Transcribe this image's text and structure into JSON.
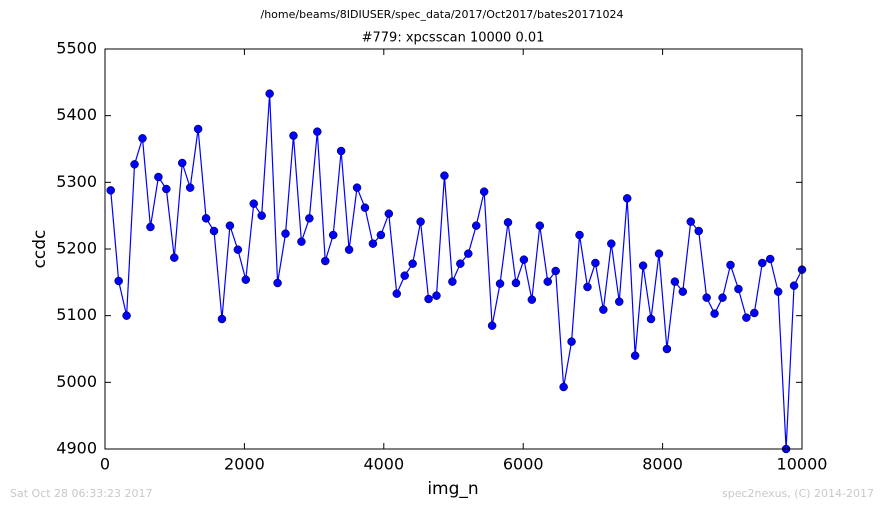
{
  "chart_data": {
    "type": "line",
    "suptitle": "/home/beams/8IDIUSER/spec_data/2017/Oct2017/bates20171024",
    "title": "#779: xpcsscan 10000 0.01",
    "xlabel": "img_n",
    "ylabel": "ccdc",
    "footer_left": "Sat Oct 28 06:33:23 2017",
    "footer_right": "spec2nexus, (C) 2014-2017",
    "color": "#0000ff",
    "x": [
      82,
      196,
      310,
      424,
      538,
      652,
      766,
      880,
      994,
      1108,
      1222,
      1336,
      1450,
      1564,
      1678,
      1792,
      1906,
      2020,
      2134,
      2248,
      2362,
      2476,
      2590,
      2704,
      2818,
      2932,
      3046,
      3160,
      3274,
      3388,
      3502,
      3616,
      3730,
      3844,
      3958,
      4072,
      4186,
      4300,
      4414,
      4528,
      4642,
      4756,
      4870,
      4984,
      5098,
      5212,
      5326,
      5440,
      5554,
      5668,
      5782,
      5896,
      6010,
      6124,
      6238,
      6352,
      6466,
      6580,
      6694,
      6808,
      6922,
      7036,
      7150,
      7264,
      7378,
      7492,
      7606,
      7720,
      7834,
      7948,
      8062,
      8176,
      8290,
      8404,
      8518,
      8632,
      8746,
      8860,
      8974,
      9088,
      9202,
      9316,
      9430,
      9544,
      9658,
      9772,
      9886,
      10000
    ],
    "values": [
      5288,
      5152,
      5100,
      5327,
      5366,
      5233,
      5308,
      5290,
      5187,
      5329,
      5292,
      5380,
      5246,
      5227,
      5095,
      5235,
      5199,
      5154,
      5268,
      5250,
      5433,
      5149,
      5223,
      5370,
      5211,
      5246,
      5376,
      5182,
      5221,
      5347,
      5199,
      5292,
      5262,
      5208,
      5221,
      5253,
      5133,
      5160,
      5178,
      5241,
      5125,
      5130,
      5310,
      5151,
      5178,
      5193,
      5235,
      5286,
      5085,
      5148,
      5240,
      5149,
      5184,
      5124,
      5235,
      5151,
      5167,
      4993,
      5061,
      5221,
      5143,
      5179,
      5109,
      5208,
      5121,
      5276,
      5040,
      5175,
      5095,
      5193,
      5050,
      5151,
      5136,
      5241,
      5227,
      5127,
      5103,
      5127,
      5176,
      5140,
      5097,
      5104,
      5179,
      5185,
      5136,
      4900,
      5145,
      5169
    ],
    "xlim": [
      0,
      10000
    ],
    "xticks": [
      0,
      2000,
      4000,
      6000,
      8000,
      10000
    ],
    "ylim": [
      4900,
      5500
    ],
    "yticks": [
      4900,
      5000,
      5100,
      5200,
      5300,
      5400,
      5500
    ],
    "grid": false
  }
}
